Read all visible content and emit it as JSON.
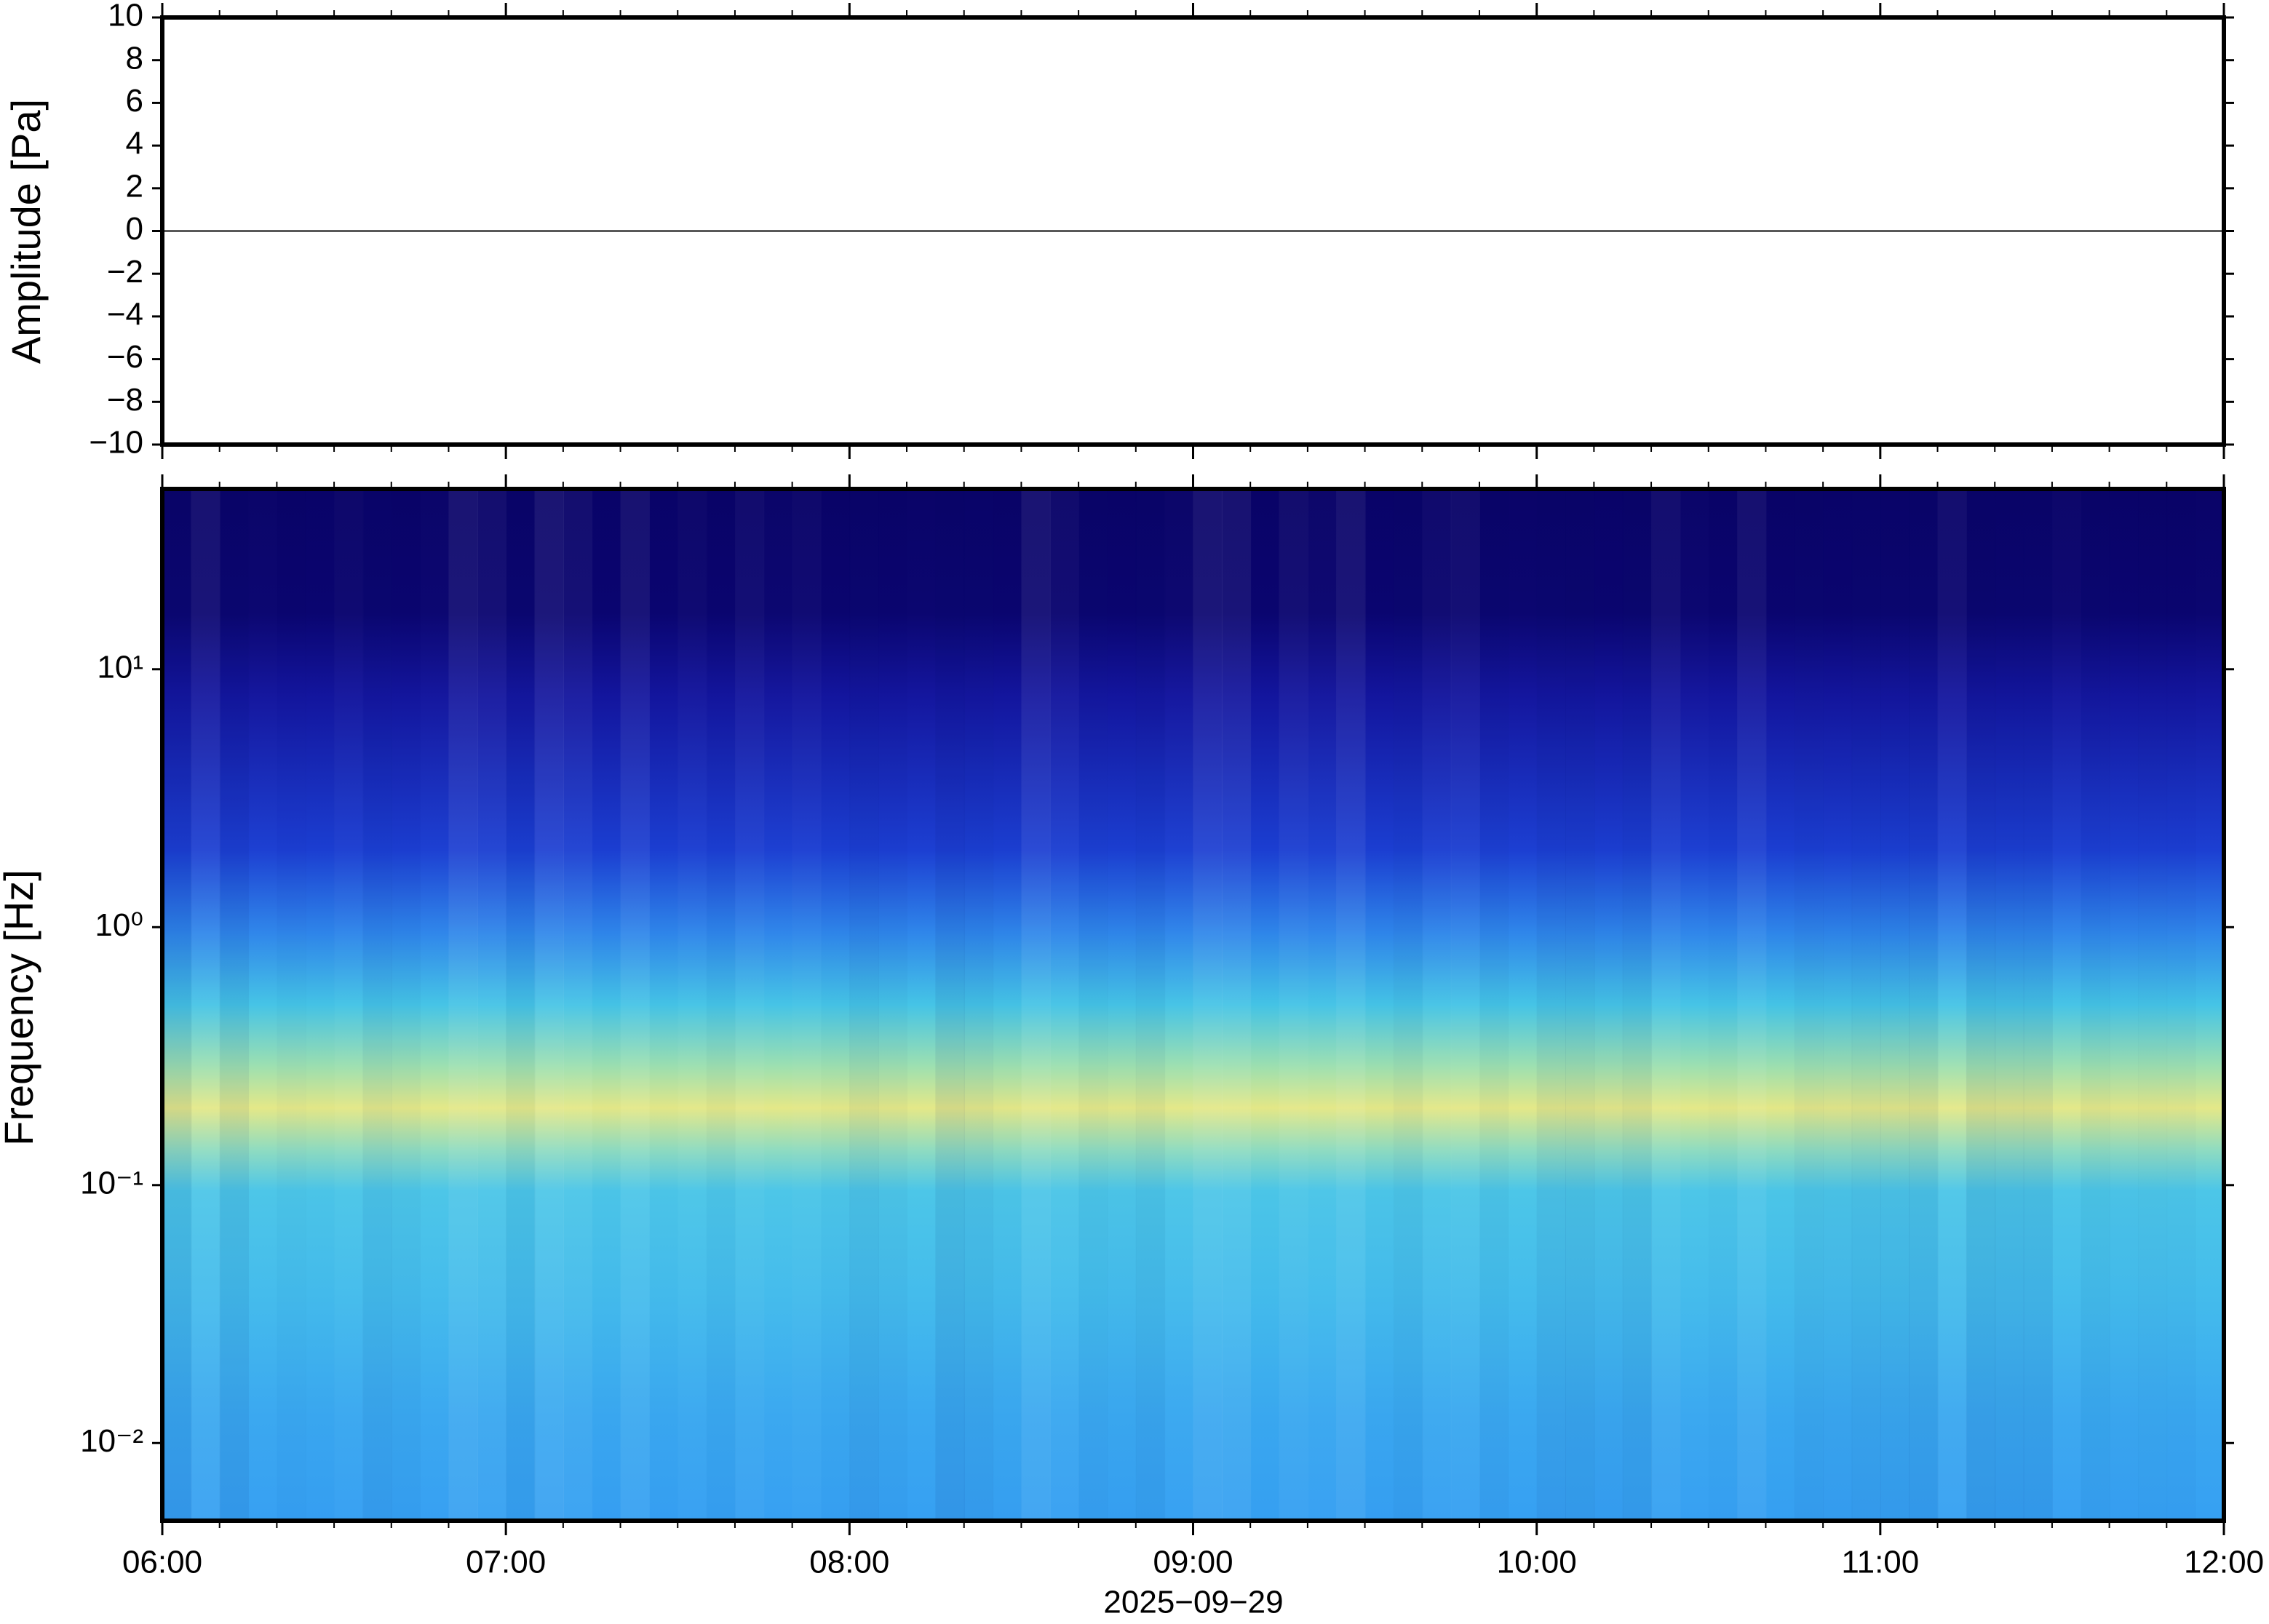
{
  "chart_data": [
    {
      "type": "line",
      "ylabel": "Amplitude [Pa]",
      "color": "#000000",
      "x": [
        6,
        6.1,
        6.2,
        6.3,
        6.4,
        6.5,
        6.6,
        6.7,
        6.8,
        6.9,
        7,
        7.1,
        7.2,
        7.3,
        7.4,
        7.5,
        7.6,
        7.7,
        7.8,
        7.9,
        8,
        8.1,
        8.2,
        8.3,
        8.4,
        8.5,
        8.6,
        8.7,
        8.8,
        8.9,
        9,
        9.1,
        9.2,
        9.3,
        9.4,
        9.5,
        9.6,
        9.7,
        9.8,
        9.9,
        10,
        10.1,
        10.2,
        10.3,
        10.4,
        10.5,
        10.6,
        10.7,
        10.8,
        10.9,
        11,
        11.1,
        11.2,
        11.3,
        11.4,
        11.5,
        11.6,
        11.7,
        11.8,
        11.9,
        12
      ],
      "values": [
        0,
        0,
        0,
        0,
        0,
        0,
        0,
        0,
        0,
        0,
        0,
        0,
        0,
        0,
        0,
        0,
        0,
        0,
        0,
        0,
        0,
        0,
        0,
        0,
        0,
        0,
        0,
        0,
        0,
        0,
        0,
        0,
        0,
        0,
        0,
        0,
        0,
        0,
        0,
        0,
        0,
        0,
        0,
        0,
        0,
        0,
        0,
        0,
        0,
        0,
        0,
        0,
        0,
        0,
        0,
        0,
        0,
        0,
        0,
        0,
        0
      ],
      "xlim": [
        6,
        12
      ],
      "ylim": [
        -10,
        10
      ],
      "yticks": [
        {
          "value": -10,
          "label": "−10"
        },
        {
          "value": -8,
          "label": "−8"
        },
        {
          "value": -6,
          "label": "−6"
        },
        {
          "value": -4,
          "label": "−4"
        },
        {
          "value": -2,
          "label": "−2"
        },
        0,
        2,
        4,
        6,
        8,
        10
      ]
    },
    {
      "type": "spectrogram",
      "ylabel": "Frequency [Hz]",
      "xlabel": "2025−09−29",
      "log_y": true,
      "xlim": [
        6,
        12
      ],
      "xticks": [
        {
          "value": 6,
          "label": "06:00"
        },
        {
          "value": 7,
          "label": "07:00"
        },
        {
          "value": 8,
          "label": "08:00"
        },
        {
          "value": 9,
          "label": "09:00"
        },
        {
          "value": 10,
          "label": "10:00"
        },
        {
          "value": 11,
          "label": "11:00"
        },
        {
          "value": 12,
          "label": "12:00"
        }
      ],
      "ylim": [
        0.005,
        50
      ],
      "yticks": [
        {
          "value": 0.01,
          "label": "10⁻²"
        },
        {
          "value": 0.1,
          "label": "10⁻¹"
        },
        {
          "value": 1,
          "label": "10⁰"
        },
        {
          "value": 10,
          "label": "10¹"
        }
      ]
    }
  ]
}
